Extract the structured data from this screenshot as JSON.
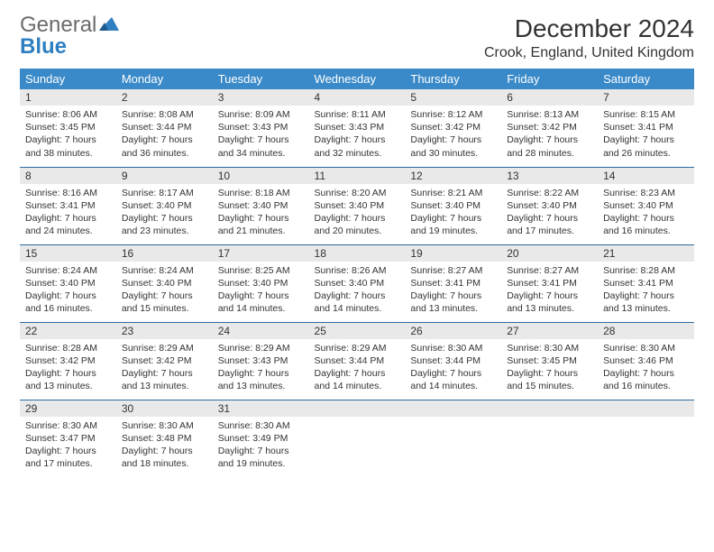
{
  "brand": {
    "part1": "General",
    "part2": "Blue"
  },
  "title": "December 2024",
  "location": "Crook, England, United Kingdom",
  "colors": {
    "header_bg": "#3a8ac9",
    "header_text": "#ffffff",
    "daynum_bg": "#e9e9e9",
    "rule": "#2d6aa0",
    "logo_gray": "#6b6b6b",
    "logo_blue": "#2f7fc1"
  },
  "weekdays": [
    "Sunday",
    "Monday",
    "Tuesday",
    "Wednesday",
    "Thursday",
    "Friday",
    "Saturday"
  ],
  "weeks": [
    [
      {
        "n": "1",
        "sr": "Sunrise: 8:06 AM",
        "ss": "Sunset: 3:45 PM",
        "dl": "Daylight: 7 hours and 38 minutes."
      },
      {
        "n": "2",
        "sr": "Sunrise: 8:08 AM",
        "ss": "Sunset: 3:44 PM",
        "dl": "Daylight: 7 hours and 36 minutes."
      },
      {
        "n": "3",
        "sr": "Sunrise: 8:09 AM",
        "ss": "Sunset: 3:43 PM",
        "dl": "Daylight: 7 hours and 34 minutes."
      },
      {
        "n": "4",
        "sr": "Sunrise: 8:11 AM",
        "ss": "Sunset: 3:43 PM",
        "dl": "Daylight: 7 hours and 32 minutes."
      },
      {
        "n": "5",
        "sr": "Sunrise: 8:12 AM",
        "ss": "Sunset: 3:42 PM",
        "dl": "Daylight: 7 hours and 30 minutes."
      },
      {
        "n": "6",
        "sr": "Sunrise: 8:13 AM",
        "ss": "Sunset: 3:42 PM",
        "dl": "Daylight: 7 hours and 28 minutes."
      },
      {
        "n": "7",
        "sr": "Sunrise: 8:15 AM",
        "ss": "Sunset: 3:41 PM",
        "dl": "Daylight: 7 hours and 26 minutes."
      }
    ],
    [
      {
        "n": "8",
        "sr": "Sunrise: 8:16 AM",
        "ss": "Sunset: 3:41 PM",
        "dl": "Daylight: 7 hours and 24 minutes."
      },
      {
        "n": "9",
        "sr": "Sunrise: 8:17 AM",
        "ss": "Sunset: 3:40 PM",
        "dl": "Daylight: 7 hours and 23 minutes."
      },
      {
        "n": "10",
        "sr": "Sunrise: 8:18 AM",
        "ss": "Sunset: 3:40 PM",
        "dl": "Daylight: 7 hours and 21 minutes."
      },
      {
        "n": "11",
        "sr": "Sunrise: 8:20 AM",
        "ss": "Sunset: 3:40 PM",
        "dl": "Daylight: 7 hours and 20 minutes."
      },
      {
        "n": "12",
        "sr": "Sunrise: 8:21 AM",
        "ss": "Sunset: 3:40 PM",
        "dl": "Daylight: 7 hours and 19 minutes."
      },
      {
        "n": "13",
        "sr": "Sunrise: 8:22 AM",
        "ss": "Sunset: 3:40 PM",
        "dl": "Daylight: 7 hours and 17 minutes."
      },
      {
        "n": "14",
        "sr": "Sunrise: 8:23 AM",
        "ss": "Sunset: 3:40 PM",
        "dl": "Daylight: 7 hours and 16 minutes."
      }
    ],
    [
      {
        "n": "15",
        "sr": "Sunrise: 8:24 AM",
        "ss": "Sunset: 3:40 PM",
        "dl": "Daylight: 7 hours and 16 minutes."
      },
      {
        "n": "16",
        "sr": "Sunrise: 8:24 AM",
        "ss": "Sunset: 3:40 PM",
        "dl": "Daylight: 7 hours and 15 minutes."
      },
      {
        "n": "17",
        "sr": "Sunrise: 8:25 AM",
        "ss": "Sunset: 3:40 PM",
        "dl": "Daylight: 7 hours and 14 minutes."
      },
      {
        "n": "18",
        "sr": "Sunrise: 8:26 AM",
        "ss": "Sunset: 3:40 PM",
        "dl": "Daylight: 7 hours and 14 minutes."
      },
      {
        "n": "19",
        "sr": "Sunrise: 8:27 AM",
        "ss": "Sunset: 3:41 PM",
        "dl": "Daylight: 7 hours and 13 minutes."
      },
      {
        "n": "20",
        "sr": "Sunrise: 8:27 AM",
        "ss": "Sunset: 3:41 PM",
        "dl": "Daylight: 7 hours and 13 minutes."
      },
      {
        "n": "21",
        "sr": "Sunrise: 8:28 AM",
        "ss": "Sunset: 3:41 PM",
        "dl": "Daylight: 7 hours and 13 minutes."
      }
    ],
    [
      {
        "n": "22",
        "sr": "Sunrise: 8:28 AM",
        "ss": "Sunset: 3:42 PM",
        "dl": "Daylight: 7 hours and 13 minutes."
      },
      {
        "n": "23",
        "sr": "Sunrise: 8:29 AM",
        "ss": "Sunset: 3:42 PM",
        "dl": "Daylight: 7 hours and 13 minutes."
      },
      {
        "n": "24",
        "sr": "Sunrise: 8:29 AM",
        "ss": "Sunset: 3:43 PM",
        "dl": "Daylight: 7 hours and 13 minutes."
      },
      {
        "n": "25",
        "sr": "Sunrise: 8:29 AM",
        "ss": "Sunset: 3:44 PM",
        "dl": "Daylight: 7 hours and 14 minutes."
      },
      {
        "n": "26",
        "sr": "Sunrise: 8:30 AM",
        "ss": "Sunset: 3:44 PM",
        "dl": "Daylight: 7 hours and 14 minutes."
      },
      {
        "n": "27",
        "sr": "Sunrise: 8:30 AM",
        "ss": "Sunset: 3:45 PM",
        "dl": "Daylight: 7 hours and 15 minutes."
      },
      {
        "n": "28",
        "sr": "Sunrise: 8:30 AM",
        "ss": "Sunset: 3:46 PM",
        "dl": "Daylight: 7 hours and 16 minutes."
      }
    ],
    [
      {
        "n": "29",
        "sr": "Sunrise: 8:30 AM",
        "ss": "Sunset: 3:47 PM",
        "dl": "Daylight: 7 hours and 17 minutes."
      },
      {
        "n": "30",
        "sr": "Sunrise: 8:30 AM",
        "ss": "Sunset: 3:48 PM",
        "dl": "Daylight: 7 hours and 18 minutes."
      },
      {
        "n": "31",
        "sr": "Sunrise: 8:30 AM",
        "ss": "Sunset: 3:49 PM",
        "dl": "Daylight: 7 hours and 19 minutes."
      },
      null,
      null,
      null,
      null
    ]
  ]
}
